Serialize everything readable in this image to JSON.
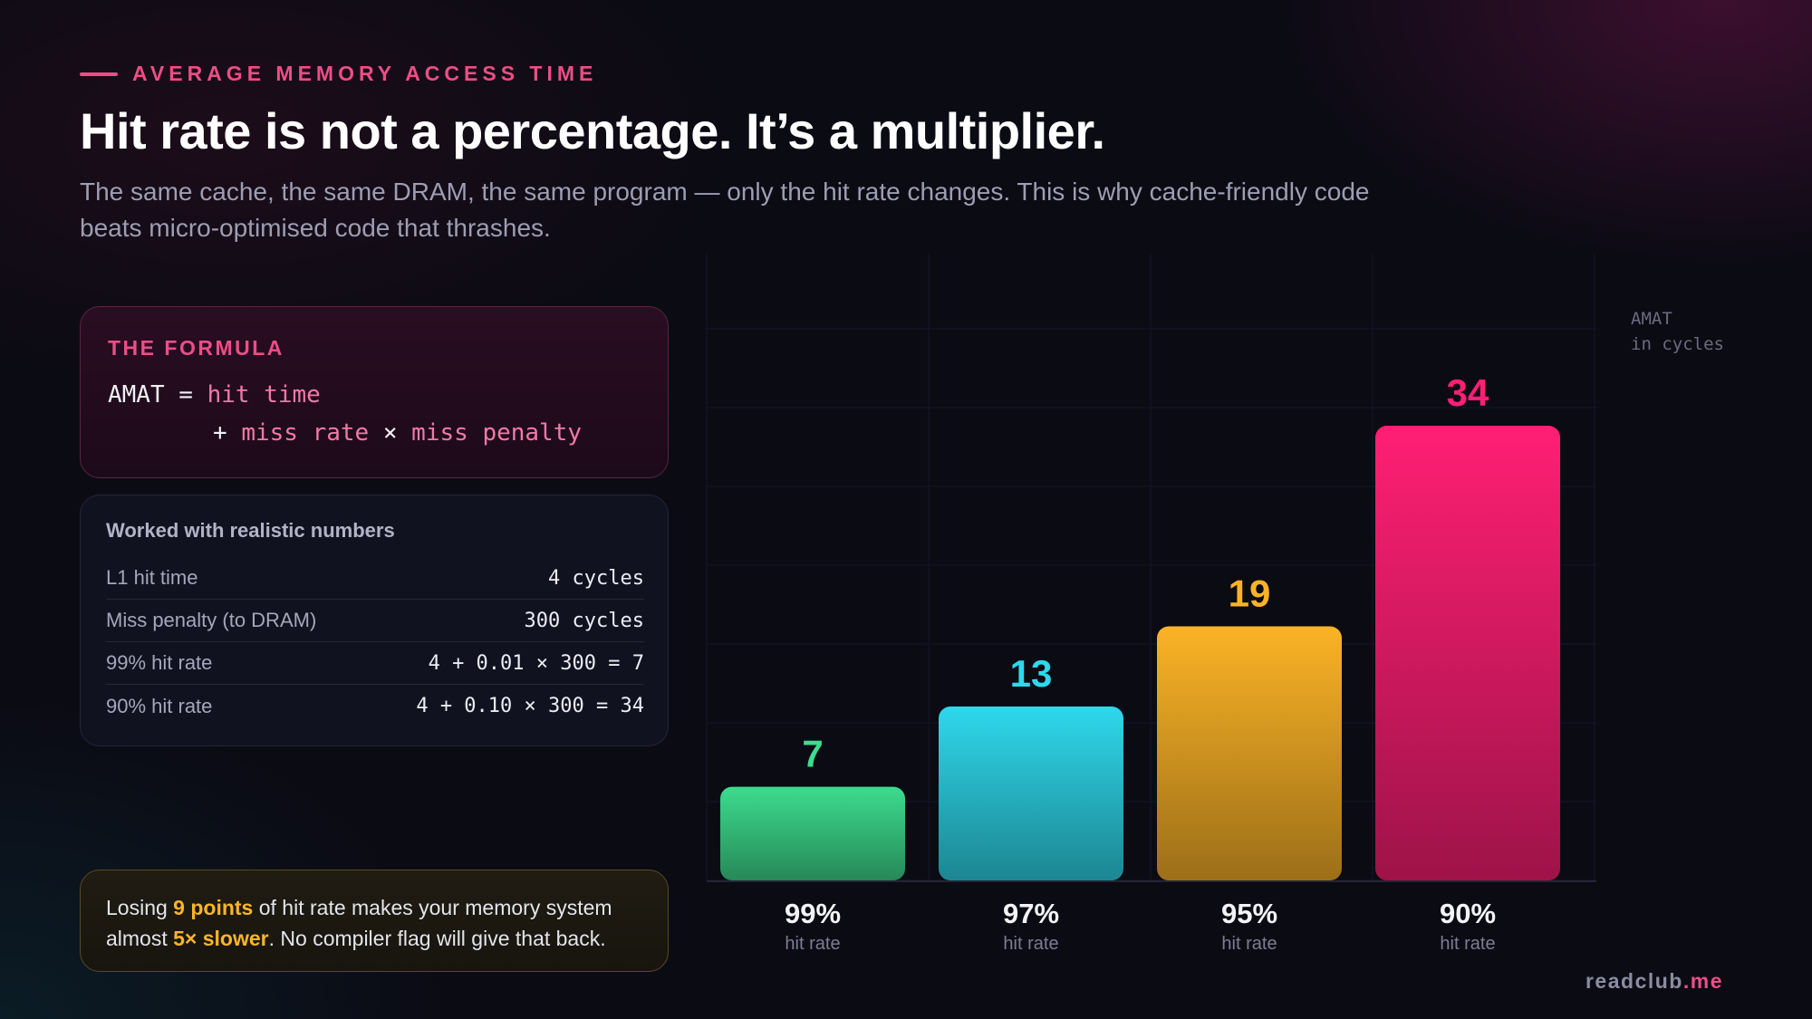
{
  "eyebrow": "AVERAGE MEMORY ACCESS TIME",
  "title": "Hit rate is not a percentage. It’s a multiplier.",
  "subtitle": "The same cache, the same DRAM, the same program — only the hit rate changes. This is why cache-friendly code beats micro-optimised code that thrashes.",
  "formula": {
    "label": "THE FORMULA",
    "line1_lhs": "AMAT = ",
    "line1_term": "hit time",
    "line2_op": "+ ",
    "line2_term1": "miss rate",
    "line2_times": " × ",
    "line2_term2": "miss penalty"
  },
  "worked": {
    "title": "Worked with realistic numbers",
    "rows": [
      {
        "key": "L1 hit time",
        "value": "4 cycles"
      },
      {
        "key": "Miss penalty (to DRAM)",
        "value": "300 cycles"
      },
      {
        "key": "99% hit rate",
        "value": "4 + 0.01 × 300 = 7"
      },
      {
        "key": "90% hit rate",
        "value": "4 + 0.10 × 300 = 34"
      }
    ]
  },
  "callout": {
    "t1": "Losing ",
    "h1": "9 points",
    "t2": " of hit rate makes your memory system almost ",
    "h2": "5× slower",
    "t3": ". No compiler flag will give that back."
  },
  "chart_data": {
    "type": "bar",
    "categories": [
      "99%",
      "97%",
      "95%",
      "90%"
    ],
    "category_sublabel": "hit rate",
    "values": [
      7,
      13,
      19,
      34
    ],
    "value_labels": [
      "7",
      "13",
      "19",
      "34"
    ],
    "ylabel": "AMAT\nin cycles",
    "ylim": [
      0,
      40
    ],
    "grid": true,
    "colors": [
      "#3ddc8e",
      "#2fd8ec",
      "#fbb326",
      "#ff1f74"
    ]
  },
  "brand": {
    "name": "readclub",
    "tld": ".me"
  }
}
